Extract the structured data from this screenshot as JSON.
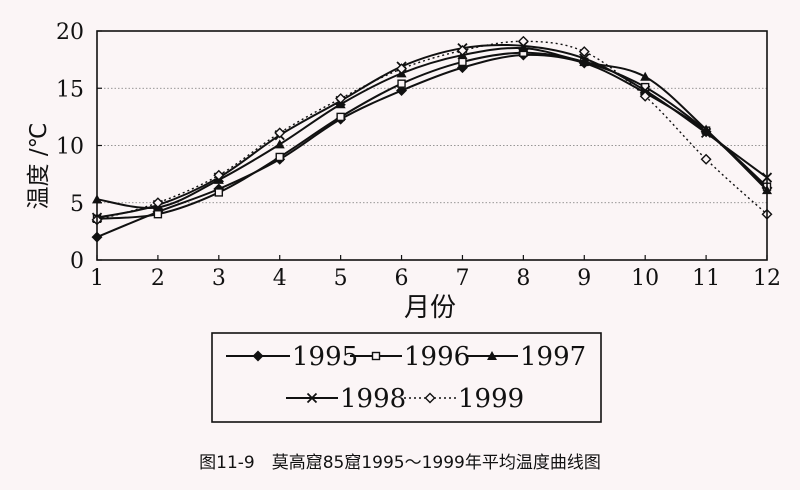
{
  "caption": "图11-9　莫高窟85窟1995～1999年平均温度曲线图",
  "chart_data": {
    "type": "line",
    "xlabel": "月份",
    "ylabel": "温度 /℃",
    "x": [
      1,
      2,
      3,
      4,
      5,
      6,
      7,
      8,
      9,
      10,
      11,
      12
    ],
    "x_ticks": [
      "1",
      "2",
      "3",
      "4",
      "5",
      "6",
      "7",
      "8",
      "9",
      "10",
      "11",
      "12"
    ],
    "y_ticks": [
      "0",
      "5",
      "10",
      "15",
      "20"
    ],
    "ylim": [
      0,
      20
    ],
    "grid": "horizontal",
    "legend_position": "bottom",
    "series": [
      {
        "name": "1995",
        "marker": "diamond-filled",
        "dash": "solid",
        "values": [
          2.0,
          4.2,
          6.2,
          8.8,
          12.3,
          14.8,
          16.8,
          17.9,
          17.2,
          14.6,
          11.2,
          6.3
        ]
      },
      {
        "name": "1996",
        "marker": "square-open",
        "dash": "solid",
        "values": [
          3.6,
          4.0,
          5.9,
          9.0,
          12.5,
          15.4,
          17.3,
          18.1,
          17.3,
          15.1,
          11.3,
          6.4
        ]
      },
      {
        "name": "1997",
        "marker": "triangle-filled",
        "dash": "solid",
        "values": [
          5.3,
          4.6,
          7.0,
          10.1,
          13.6,
          16.3,
          17.9,
          18.5,
          17.3,
          16.0,
          11.4,
          6.1
        ]
      },
      {
        "name": "1998",
        "marker": "cross",
        "dash": "solid",
        "values": [
          3.7,
          4.8,
          7.2,
          10.9,
          13.9,
          16.9,
          18.5,
          18.7,
          17.6,
          14.8,
          11.1,
          7.2
        ]
      },
      {
        "name": "1999",
        "marker": "diamond-open",
        "dash": "dotted",
        "values": [
          3.5,
          5.0,
          7.4,
          11.1,
          14.1,
          16.7,
          18.3,
          19.1,
          18.2,
          14.3,
          8.8,
          4.0
        ]
      }
    ]
  }
}
